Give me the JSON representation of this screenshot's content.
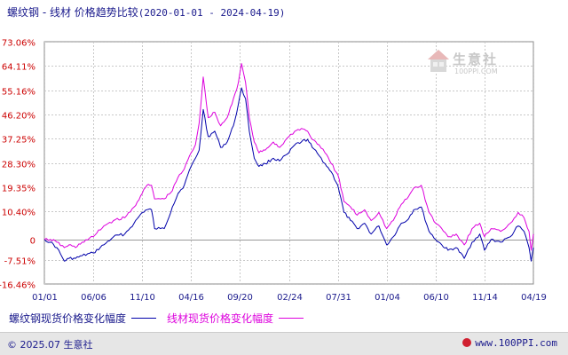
{
  "title": {
    "main": "螺纹钢 - 线材 价格趋势比较",
    "range": "(2020-01-01 - 2024-04-19)"
  },
  "watermark": {
    "name": "生意社",
    "url": "100PPI.COM",
    "icon": "house-logo-icon"
  },
  "footer": {
    "copyright": "© 2025.07 生意社",
    "site": "www.100PPI.com",
    "icon": "site-logo-icon"
  },
  "colors": {
    "rebar": "#0000aa",
    "wire": "#dd00dd",
    "text": "#1a1a8c",
    "grid": "#c8c8c8",
    "zero": "#999999"
  },
  "chart_data": {
    "type": "line",
    "ylabel": "",
    "xlabel": "",
    "x_ticks": [
      "01/01",
      "06/06",
      "11/10",
      "04/16",
      "09/20",
      "02/24",
      "07/31",
      "01/04",
      "06/10",
      "11/14",
      "04/19"
    ],
    "y_ticks": [
      "73.06%",
      "64.11%",
      "55.16%",
      "46.20%",
      "37.25%",
      "28.30%",
      "19.35%",
      "10.40%",
      "0",
      "-7.51%",
      "-16.46%"
    ],
    "y_tick_values": [
      73.06,
      64.11,
      55.16,
      46.2,
      37.25,
      28.3,
      19.35,
      10.4,
      0,
      -7.51,
      -16.46
    ],
    "ylim": [
      -16.46,
      73.06
    ],
    "x_range": [
      "2020-01-01",
      "2024-04-19"
    ],
    "grid": true,
    "legend_position": "bottom-left",
    "series": [
      {
        "name": "螺纹钢现货价格变化幅度",
        "color": "#0000aa",
        "x_dates": [
          "2020-01-01",
          "2020-01-20",
          "2020-02-10",
          "2020-03-05",
          "2020-03-20",
          "2020-04-10",
          "2020-05-01",
          "2020-06-06",
          "2020-07-10",
          "2020-08-10",
          "2020-09-15",
          "2020-10-15",
          "2020-11-10",
          "2020-11-25",
          "2020-12-10",
          "2020-12-20",
          "2021-01-08",
          "2021-01-20",
          "2021-02-15",
          "2021-03-05",
          "2021-03-25",
          "2021-04-16",
          "2021-04-30",
          "2021-05-12",
          "2021-05-25",
          "2021-06-10",
          "2021-07-01",
          "2021-07-20",
          "2021-08-10",
          "2021-08-30",
          "2021-09-15",
          "2021-09-25",
          "2021-10-08",
          "2021-10-20",
          "2021-11-05",
          "2021-11-20",
          "2021-12-10",
          "2022-01-05",
          "2022-01-25",
          "2022-02-24",
          "2022-03-15",
          "2022-04-05",
          "2022-04-25",
          "2022-05-10",
          "2022-06-01",
          "2022-06-20",
          "2022-07-10",
          "2022-07-31",
          "2022-08-20",
          "2022-09-10",
          "2022-10-01",
          "2022-10-25",
          "2022-11-15",
          "2022-12-10",
          "2023-01-04",
          "2023-01-25",
          "2023-02-20",
          "2023-03-10",
          "2023-04-01",
          "2023-04-25",
          "2023-05-20",
          "2023-06-10",
          "2023-06-30",
          "2023-07-20",
          "2023-08-15",
          "2023-09-10",
          "2023-10-05",
          "2023-10-30",
          "2023-11-14",
          "2023-12-05",
          "2024-01-05",
          "2024-02-05",
          "2024-03-01",
          "2024-03-20",
          "2024-04-05",
          "2024-04-12",
          "2024-04-19"
        ],
        "values": [
          0,
          -1,
          -3,
          -8,
          -7,
          -7,
          -6,
          -5,
          -2,
          1,
          2,
          6,
          10,
          11,
          11,
          4,
          4,
          4,
          12,
          17,
          20,
          27,
          30,
          33,
          48,
          38,
          40,
          34,
          36,
          42,
          50,
          56,
          52,
          40,
          30,
          27,
          28,
          30,
          29,
          32,
          35,
          36,
          37,
          34,
          31,
          28,
          25,
          20,
          10,
          7,
          4,
          6,
          2,
          5,
          -2,
          1,
          6,
          7,
          11,
          12,
          3,
          0,
          -2,
          -4,
          -3,
          -7,
          -1,
          2,
          -4,
          0,
          -1,
          1,
          5,
          3,
          -3,
          -8,
          -3
        ]
      },
      {
        "name": "线材现货价格变化幅度",
        "color": "#dd00dd",
        "x_dates": [
          "2020-01-01",
          "2020-01-20",
          "2020-02-10",
          "2020-03-05",
          "2020-03-20",
          "2020-04-10",
          "2020-05-01",
          "2020-06-06",
          "2020-07-10",
          "2020-08-10",
          "2020-09-15",
          "2020-10-15",
          "2020-11-10",
          "2020-11-25",
          "2020-12-10",
          "2020-12-20",
          "2021-01-08",
          "2021-01-20",
          "2021-02-15",
          "2021-03-05",
          "2021-03-25",
          "2021-04-16",
          "2021-04-30",
          "2021-05-12",
          "2021-05-25",
          "2021-06-10",
          "2021-07-01",
          "2021-07-20",
          "2021-08-10",
          "2021-08-30",
          "2021-09-15",
          "2021-09-25",
          "2021-10-08",
          "2021-10-20",
          "2021-11-05",
          "2021-11-20",
          "2021-12-10",
          "2022-01-05",
          "2022-01-25",
          "2022-02-24",
          "2022-03-15",
          "2022-04-05",
          "2022-04-25",
          "2022-05-10",
          "2022-06-01",
          "2022-06-20",
          "2022-07-10",
          "2022-07-31",
          "2022-08-20",
          "2022-09-10",
          "2022-10-01",
          "2022-10-25",
          "2022-11-15",
          "2022-12-10",
          "2023-01-04",
          "2023-01-25",
          "2023-02-20",
          "2023-03-10",
          "2023-04-01",
          "2023-04-25",
          "2023-05-20",
          "2023-06-10",
          "2023-06-30",
          "2023-07-20",
          "2023-08-15",
          "2023-09-10",
          "2023-10-05",
          "2023-10-30",
          "2023-11-14",
          "2023-12-05",
          "2024-01-05",
          "2024-02-05",
          "2024-03-01",
          "2024-03-20",
          "2024-04-05",
          "2024-04-12",
          "2024-04-19"
        ],
        "values": [
          0,
          0,
          -1,
          -3,
          -2,
          -3,
          -1,
          1,
          5,
          7,
          8,
          12,
          17,
          20,
          20,
          15,
          15,
          15,
          18,
          23,
          26,
          32,
          35,
          43,
          60,
          45,
          47,
          42,
          45,
          52,
          58,
          65,
          58,
          45,
          36,
          32,
          33,
          36,
          34,
          38,
          40,
          41,
          40,
          37,
          35,
          32,
          28,
          24,
          14,
          12,
          9,
          11,
          7,
          10,
          4,
          7,
          13,
          15,
          19,
          20,
          10,
          6,
          4,
          1,
          2,
          -2,
          4,
          6,
          1,
          4,
          3,
          6,
          10,
          8,
          3,
          -4,
          2
        ]
      }
    ]
  },
  "legend": {
    "items": [
      "螺纹钢现货价格变化幅度",
      "线材现货价格变化幅度"
    ]
  }
}
